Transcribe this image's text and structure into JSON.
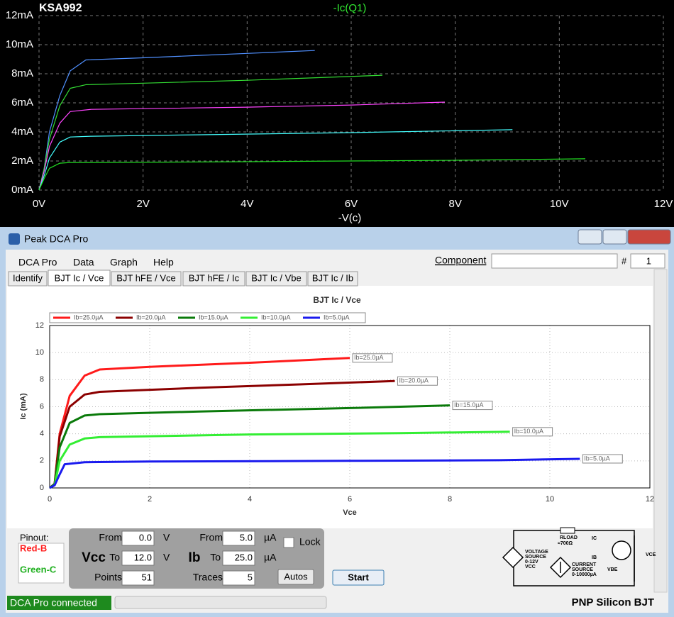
{
  "chart_data": [
    {
      "type": "line",
      "title": "KSA992",
      "trace_label": "-Ic(Q1)",
      "trace_label_color": "#33ee33",
      "xlabel": "-V(c)",
      "background": "#000000",
      "grid": true,
      "xlim": [
        0,
        12
      ],
      "ylim": [
        0,
        12
      ],
      "xticks": [
        {
          "value": 0,
          "label": "0V"
        },
        {
          "value": 2,
          "label": "2V"
        },
        {
          "value": 4,
          "label": "4V"
        },
        {
          "value": 6,
          "label": "6V"
        },
        {
          "value": 8,
          "label": "8V"
        },
        {
          "value": 10,
          "label": "10V"
        },
        {
          "value": 12,
          "label": "12V"
        }
      ],
      "yticks": [
        {
          "value": 0,
          "label": "0mA"
        },
        {
          "value": 2,
          "label": "2mA"
        },
        {
          "value": 4,
          "label": "4mA"
        },
        {
          "value": 6,
          "label": "6mA"
        },
        {
          "value": 8,
          "label": "8mA"
        },
        {
          "value": 10,
          "label": "10mA"
        },
        {
          "value": 12,
          "label": "12mA"
        }
      ],
      "series": [
        {
          "color": "#5090ff",
          "x": [
            0,
            0.1,
            0.2,
            0.4,
            0.6,
            0.9,
            2,
            3,
            4,
            5.3
          ],
          "values": [
            0,
            1.5,
            4,
            6.5,
            8.2,
            8.95,
            9.1,
            9.25,
            9.4,
            9.6
          ]
        },
        {
          "color": "#33dd33",
          "x": [
            0,
            0.1,
            0.2,
            0.4,
            0.6,
            0.9,
            2,
            4,
            6.6
          ],
          "values": [
            0,
            1.5,
            3.5,
            5.8,
            7,
            7.25,
            7.35,
            7.55,
            7.9
          ]
        },
        {
          "color": "#ff44ff",
          "x": [
            0,
            0.1,
            0.2,
            0.4,
            0.6,
            1,
            2,
            4,
            6,
            7.8
          ],
          "values": [
            0,
            1.3,
            3,
            4.6,
            5.4,
            5.55,
            5.6,
            5.7,
            5.85,
            6.05
          ]
        },
        {
          "color": "#44ffff",
          "x": [
            0,
            0.1,
            0.2,
            0.4,
            0.6,
            1,
            3,
            6,
            9.1
          ],
          "values": [
            0,
            1,
            2.2,
            3.3,
            3.65,
            3.7,
            3.8,
            3.95,
            4.15
          ]
        },
        {
          "color": "#22dd22",
          "x": [
            0,
            0.1,
            0.2,
            0.4,
            0.6,
            1,
            4,
            8,
            10.5
          ],
          "values": [
            0,
            0.8,
            1.5,
            1.85,
            1.9,
            1.9,
            1.95,
            2.05,
            2.15
          ]
        }
      ]
    },
    {
      "type": "line",
      "title": "BJT Ic / Vce",
      "xlabel": "Vce",
      "ylabel": "Ic (mA)",
      "background": "#ffffff",
      "grid": true,
      "xlim": [
        0,
        12
      ],
      "ylim": [
        0,
        12
      ],
      "xticks": [
        0,
        2,
        4,
        6,
        8,
        10,
        12
      ],
      "yticks": [
        0,
        2,
        4,
        6,
        8,
        10,
        12
      ],
      "series": [
        {
          "name": "Ib=25.0µA",
          "color": "#ff1a1a",
          "x": [
            0,
            0.1,
            0.2,
            0.4,
            0.7,
            1,
            2,
            4,
            6
          ],
          "values": [
            0,
            0.3,
            4,
            6.8,
            8.3,
            8.75,
            8.95,
            9.25,
            9.6
          ]
        },
        {
          "name": "Ib=20.0µA",
          "color": "#8b0000",
          "x": [
            0,
            0.1,
            0.2,
            0.4,
            0.7,
            1,
            3,
            5,
            6.9
          ],
          "values": [
            0,
            0.3,
            3.8,
            6,
            6.9,
            7.1,
            7.4,
            7.65,
            7.9
          ]
        },
        {
          "name": "Ib=15.0µA",
          "color": "#0a7a0a",
          "x": [
            0,
            0.1,
            0.2,
            0.4,
            0.7,
            1,
            3,
            6,
            8
          ],
          "values": [
            0,
            0.3,
            3,
            4.8,
            5.35,
            5.45,
            5.65,
            5.9,
            6.1
          ]
        },
        {
          "name": "Ib=10.0µA",
          "color": "#33ee33",
          "x": [
            0,
            0.1,
            0.2,
            0.4,
            0.7,
            1,
            4,
            7,
            9.2
          ],
          "values": [
            0,
            0.2,
            2,
            3.2,
            3.65,
            3.75,
            3.95,
            4.05,
            4.15
          ]
        },
        {
          "name": "Ib=5.0µA",
          "color": "#1a1aee",
          "x": [
            0,
            0.1,
            0.2,
            0.3,
            0.7,
            2,
            6,
            9,
            10.6
          ],
          "values": [
            0,
            0.2,
            1,
            1.75,
            1.9,
            1.95,
            2.0,
            2.05,
            2.15
          ]
        }
      ]
    }
  ],
  "window": {
    "title": "Peak DCA Pro",
    "menu": [
      "DCA Pro",
      "Data",
      "Graph",
      "Help"
    ],
    "component_label": "Component",
    "hash_label": "#",
    "component_number": "1",
    "tabs": [
      "Identify",
      "BJT Ic / Vce",
      "BJT hFE / Vce",
      "BJT hFE / Ic",
      "BJT Ic / Vbe",
      "BJT Ic / Ib"
    ],
    "active_tab": 1
  },
  "controls": {
    "pinout_label": "Pinout:",
    "pinout": [
      {
        "text": "Red-B",
        "color": "#ff2020"
      },
      {
        "text": "Green-C",
        "color": "#20b020"
      }
    ],
    "vcc": {
      "label": "Vcc",
      "from_label": "From",
      "from": "0.0",
      "to_label": "To",
      "to": "12.0",
      "unit": "V",
      "count_label": "Points",
      "count": "51"
    },
    "ib": {
      "label": "Ib",
      "from_label": "From",
      "from": "5.0",
      "to_label": "To",
      "to": "25.0",
      "unit": "µA",
      "count_label": "Traces",
      "count": "5"
    },
    "lock": "Lock",
    "autos": "Autos",
    "start": "Start"
  },
  "circuit": {
    "voltage_source": [
      "VOLTAGE",
      "SOURCE",
      "0-12V",
      "VCC"
    ],
    "rload": "RLOAD",
    "rload_value": "≈700Ω",
    "ic": "IC",
    "ib": "IB",
    "current_source": [
      "CURRENT",
      "SOURCE",
      "0-10000µA"
    ],
    "vbe": "VBE",
    "vce": "VCE"
  },
  "status": {
    "connected": "DCA Pro connected",
    "device": "PNP Silicon BJT"
  }
}
